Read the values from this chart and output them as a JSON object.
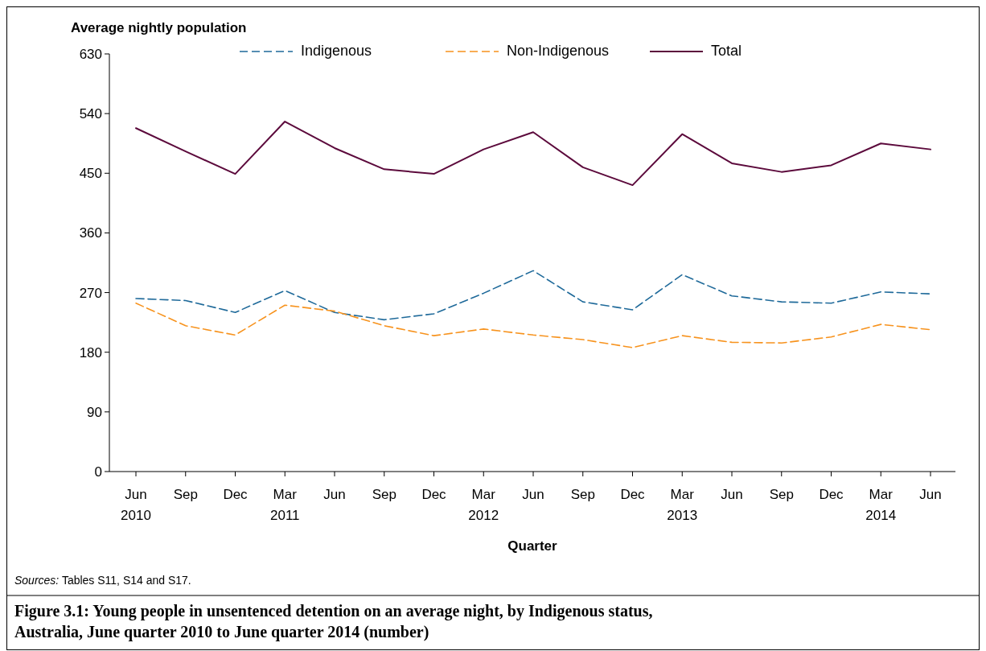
{
  "chart_data": {
    "type": "line",
    "title": "Figure 3.1: Young people in unsentenced detention on an average night, by Indigenous status, Australia, June quarter 2010 to June quarter 2014 (number)",
    "ylabel": "Average nightly population",
    "xlabel": "Quarter",
    "annotations": [
      "Sources: Tables S11, S14 and S17."
    ],
    "categories": [
      "Jun\n2010",
      "Sep",
      "Dec",
      "Mar\n2011",
      "Jun",
      "Sep",
      "Dec",
      "Mar\n2012",
      "Jun",
      "Sep",
      "Dec",
      "Mar\n2013",
      "Jun",
      "Sep",
      "Dec",
      "Mar\n2014",
      "Jun"
    ],
    "series": [
      {
        "name": "Indigenous",
        "color": "#1f6a9a",
        "line_style": "dashed",
        "values": [
          261,
          258,
          240,
          273,
          240,
          229,
          238,
          269,
          303,
          256,
          244,
          297,
          265,
          256,
          254,
          271,
          268
        ]
      },
      {
        "name": "Non-Indigenous",
        "color": "#f7931e",
        "line_style": "dashed",
        "values": [
          254,
          220,
          206,
          251,
          242,
          220,
          205,
          215,
          206,
          199,
          187,
          205,
          195,
          194,
          203,
          222,
          214
        ]
      },
      {
        "name": "Total",
        "color": "#5c0a3c",
        "line_style": "solid",
        "values": [
          518,
          483,
          449,
          528,
          488,
          456,
          449,
          486,
          512,
          459,
          432,
          509,
          465,
          452,
          462,
          495,
          486
        ]
      }
    ],
    "ylim": [
      0,
      630
    ],
    "yticks": [
      0,
      90,
      180,
      270,
      360,
      450,
      540,
      630
    ],
    "grid": false,
    "legend": "top"
  }
}
